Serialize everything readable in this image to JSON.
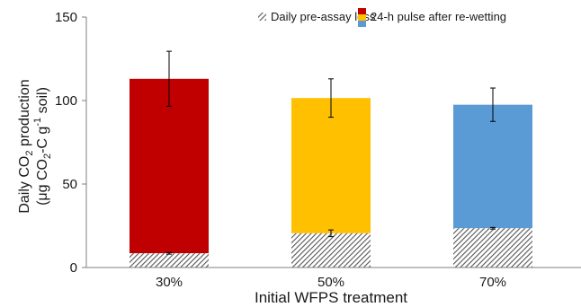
{
  "chart_data": {
    "type": "bar",
    "stacked": true,
    "xlabel": "Initial WFPS treatment",
    "ylabel_line1_main": "Daily CO",
    "ylabel_line1_sub": "2",
    "ylabel_line1_after": " production",
    "ylabel_line2_a": "(μg CO",
    "ylabel_line2_sub": "2",
    "ylabel_line2_b": "-C g",
    "ylabel_line2_sup": "-1",
    "ylabel_line2_c": " soil)",
    "ylim": [
      0,
      150
    ],
    "yticks": [
      "0",
      "50",
      "100",
      "150"
    ],
    "categories": [
      "30%",
      "50%",
      "70%"
    ],
    "series": [
      {
        "name": "Daily pre-assay loss",
        "values": [
          8.5,
          20.5,
          23.5
        ],
        "errors": [
          0.5,
          2.0,
          0.5
        ],
        "pattern": "hatched"
      },
      {
        "name": "24-h pulse after re-wetting",
        "totals": [
          113,
          101.5,
          97.5
        ],
        "errors": [
          16.5,
          11.5,
          10.0
        ],
        "colors": [
          "#c00000",
          "#ffc000",
          "#5b9bd5"
        ]
      }
    ],
    "legend_position": "top"
  }
}
